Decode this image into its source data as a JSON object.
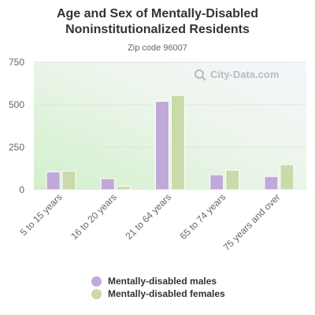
{
  "title": "Age and Sex of Mentally-Disabled\nNoninstitutionalized Residents",
  "subtitle": "Zip code 96007",
  "watermark": "City-Data.com",
  "colors": {
    "males": "#c0a9d9",
    "females": "#c9dba8",
    "grid": "#dde6dd",
    "axis_text": "#666666"
  },
  "chart_data": {
    "type": "bar",
    "categories": [
      "5 to 15 years",
      "16 to 20 years",
      "21 to 64 years",
      "65 to 74 years",
      "75 years and over"
    ],
    "series": [
      {
        "name": "Mentally-disabled males",
        "values": [
          105,
          65,
          520,
          88,
          78
        ]
      },
      {
        "name": "Mentally-disabled females",
        "values": [
          110,
          20,
          555,
          115,
          148
        ]
      }
    ],
    "yticks": [
      0,
      250,
      500,
      750
    ],
    "ylim": [
      0,
      750
    ],
    "grid": true,
    "legend_position": "bottom"
  }
}
